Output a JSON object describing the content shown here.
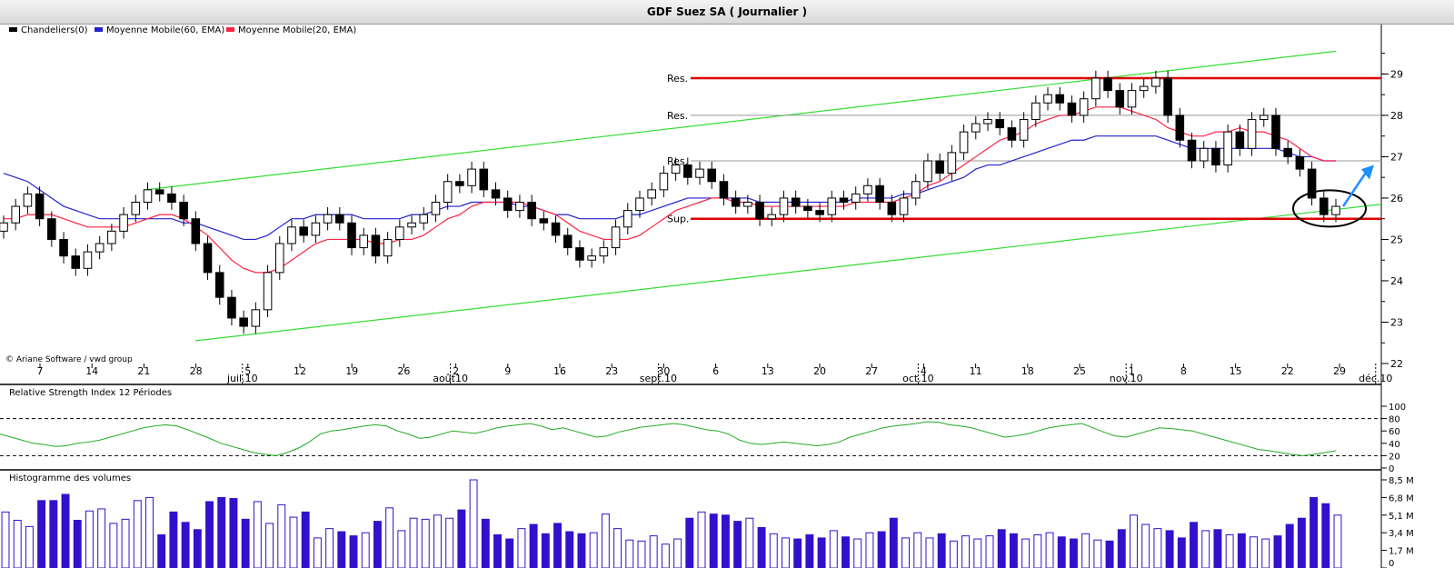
{
  "window": {
    "title": "GDF Suez SA  ( Journalier )"
  },
  "colors": {
    "ma60": "#2222cc",
    "ma20": "#ff2244",
    "trend": "#33dd33",
    "resistance_strong": "#dd0000",
    "resistance_weak": "#999999",
    "rsi": "#22aa22",
    "volume": "#3311cc",
    "arrow": "#1e8fff"
  },
  "legend": {
    "candles": "Chandeliers(0)",
    "ma60": "Moyenne Mobile(60, EMA)",
    "ma20": "Moyenne Mobile(20, EMA)"
  },
  "copyright": "© Ariane Software / vwd group",
  "rsi_panel": {
    "title": "Relative Strength Index 12 Périodes"
  },
  "volume_panel": {
    "title": "Histogramme des volumes"
  },
  "chart_data": [
    {
      "type": "candlestick",
      "title": "GDF Suez SA  ( Journalier )",
      "ylim": [
        22,
        29.8
      ],
      "y_ticks": [
        22,
        23,
        24,
        25,
        26,
        27,
        28,
        29
      ],
      "day_ticks": [
        "7",
        "14",
        "21",
        "28",
        "5",
        "12",
        "19",
        "26",
        "2",
        "9",
        "16",
        "23",
        "30",
        "6",
        "13",
        "20",
        "27",
        "4",
        "11",
        "18",
        "25",
        "1",
        "8",
        "15",
        "22",
        "29"
      ],
      "month_labels": [
        {
          "label": "juil.10",
          "at_day": 4
        },
        {
          "label": "août10",
          "at_day": 8
        },
        {
          "label": "sept.10",
          "at_day": 12
        },
        {
          "label": "oct.10",
          "at_day": 17
        },
        {
          "label": "nov.10",
          "at_day": 21
        },
        {
          "label": "déc.10",
          "at_day": 25.8
        }
      ],
      "closes": [
        25.4,
        25.8,
        26.1,
        25.5,
        25.0,
        24.6,
        24.3,
        24.7,
        24.9,
        25.2,
        25.6,
        25.9,
        26.2,
        26.1,
        25.9,
        25.5,
        24.9,
        24.2,
        23.6,
        23.1,
        22.9,
        23.3,
        24.2,
        24.9,
        25.3,
        25.1,
        25.4,
        25.6,
        25.4,
        24.8,
        25.1,
        24.6,
        25.0,
        25.3,
        25.4,
        25.6,
        25.9,
        26.4,
        26.3,
        26.7,
        26.2,
        26.0,
        25.7,
        25.9,
        25.5,
        25.4,
        25.1,
        24.8,
        24.5,
        24.6,
        24.8,
        25.3,
        25.7,
        26.0,
        26.2,
        26.6,
        26.8,
        26.5,
        26.7,
        26.4,
        26.0,
        25.8,
        25.9,
        25.5,
        25.6,
        26.0,
        25.8,
        25.7,
        25.6,
        26.0,
        25.9,
        26.1,
        26.3,
        25.9,
        25.6,
        26.0,
        26.4,
        26.9,
        26.6,
        27.1,
        27.6,
        27.8,
        27.9,
        27.7,
        27.4,
        27.9,
        28.3,
        28.5,
        28.3,
        28.0,
        28.4,
        28.9,
        28.6,
        28.2,
        28.6,
        28.7,
        28.9,
        28.0,
        27.4,
        26.9,
        27.2,
        26.8,
        27.6,
        27.2,
        27.9,
        28.0,
        27.2,
        27.0,
        26.7,
        26.0,
        25.6,
        25.8
      ],
      "resistance_lines": [
        {
          "label": "Res.",
          "value": 28.9,
          "strong": true
        },
        {
          "label": "Res.",
          "value": 28.0,
          "strong": false
        },
        {
          "label": "Res.",
          "value": 26.9,
          "strong": false
        },
        {
          "label": "Sup.",
          "value": 25.5,
          "strong": true
        }
      ],
      "series": [
        {
          "name": "Moyenne Mobile(60, EMA)",
          "values": [
            26.6,
            26.5,
            26.4,
            26.2,
            26.0,
            25.8,
            25.7,
            25.6,
            25.5,
            25.5,
            25.5,
            25.5,
            25.5,
            25.5,
            25.5,
            25.4,
            25.4,
            25.3,
            25.2,
            25.1,
            25.0,
            25.0,
            25.1,
            25.3,
            25.5,
            25.5,
            25.6,
            25.6,
            25.6,
            25.6,
            25.5,
            25.5,
            25.5,
            25.5,
            25.6,
            25.6,
            25.7,
            25.8,
            25.8,
            25.9,
            25.9,
            25.9,
            25.9,
            25.8,
            25.8,
            25.7,
            25.6,
            25.6,
            25.5,
            25.5,
            25.5,
            25.5,
            25.6,
            25.6,
            25.7,
            25.8,
            25.9,
            26.0,
            26.0,
            26.0,
            26.0,
            26.0,
            26.0,
            25.9,
            25.9,
            25.9,
            25.9,
            25.9,
            25.9,
            25.9,
            25.9,
            26.0,
            26.0,
            26.0,
            26.0,
            26.1,
            26.1,
            26.2,
            26.3,
            26.4,
            26.5,
            26.7,
            26.8,
            26.8,
            26.9,
            27.0,
            27.1,
            27.2,
            27.3,
            27.4,
            27.4,
            27.5,
            27.5,
            27.5,
            27.5,
            27.5,
            27.5,
            27.4,
            27.3,
            27.2,
            27.2,
            27.2,
            27.2,
            27.2,
            27.2,
            27.2,
            27.2,
            27.1,
            27.0,
            27.0,
            26.9,
            26.9
          ]
        },
        {
          "name": "Moyenne Mobile(20, EMA)",
          "values": [
            25.5,
            25.5,
            25.6,
            25.6,
            25.6,
            25.5,
            25.4,
            25.3,
            25.3,
            25.3,
            25.3,
            25.4,
            25.5,
            25.6,
            25.6,
            25.5,
            25.3,
            25.1,
            24.8,
            24.5,
            24.3,
            24.2,
            24.2,
            24.3,
            24.5,
            24.7,
            24.9,
            25.0,
            25.0,
            25.0,
            25.0,
            24.9,
            24.9,
            25.0,
            25.0,
            25.1,
            25.3,
            25.5,
            25.6,
            25.8,
            25.9,
            25.9,
            25.9,
            25.9,
            25.8,
            25.7,
            25.6,
            25.4,
            25.2,
            25.1,
            25.0,
            25.0,
            25.0,
            25.1,
            25.3,
            25.5,
            25.7,
            25.8,
            25.9,
            26.0,
            26.0,
            25.9,
            25.9,
            25.8,
            25.8,
            25.8,
            25.8,
            25.8,
            25.8,
            25.8,
            25.8,
            25.9,
            25.9,
            25.9,
            25.9,
            26.0,
            26.1,
            26.3,
            26.4,
            26.6,
            26.8,
            27.0,
            27.2,
            27.4,
            27.5,
            27.6,
            27.8,
            27.9,
            28.0,
            28.0,
            28.1,
            28.2,
            28.2,
            28.2,
            28.1,
            28.0,
            27.9,
            27.7,
            27.6,
            27.5,
            27.5,
            27.6,
            27.6,
            27.7,
            27.6,
            27.6,
            27.5,
            27.4,
            27.2,
            27.0,
            26.9,
            26.9
          ]
        }
      ]
    },
    {
      "type": "line",
      "title": "Relative Strength Index 12 Périodes",
      "ylim": [
        0,
        100
      ],
      "y_ticks": [
        0,
        20,
        40,
        60,
        80,
        100
      ],
      "reference_lines": [
        80,
        20
      ],
      "values": [
        55,
        50,
        45,
        40,
        38,
        35,
        36,
        40,
        42,
        45,
        50,
        55,
        60,
        65,
        68,
        70,
        68,
        62,
        55,
        48,
        40,
        35,
        30,
        25,
        22,
        20,
        25,
        32,
        42,
        55,
        60,
        62,
        65,
        68,
        70,
        68,
        60,
        55,
        48,
        50,
        55,
        60,
        58,
        56,
        60,
        65,
        68,
        70,
        72,
        68,
        62,
        65,
        60,
        55,
        50,
        52,
        58,
        62,
        66,
        68,
        70,
        72,
        70,
        66,
        62,
        60,
        55,
        45,
        40,
        38,
        40,
        42,
        40,
        38,
        36,
        38,
        42,
        50,
        55,
        60,
        65,
        68,
        70,
        72,
        75,
        74,
        70,
        68,
        65,
        60,
        55,
        50,
        52,
        55,
        60,
        65,
        68,
        70,
        72,
        65,
        58,
        52,
        50,
        55,
        60,
        65,
        64,
        62,
        60,
        55,
        50,
        45,
        40,
        35,
        30,
        28,
        25,
        22,
        20,
        22,
        25,
        28
      ]
    },
    {
      "type": "bar",
      "title": "Histogramme des volumes",
      "ylim": [
        0,
        8.5
      ],
      "y_ticks": [
        "0",
        "1,7 M",
        "3,4 M",
        "5,1 M",
        "6,8 M",
        "8,5 M"
      ],
      "values": [
        5.4,
        4.6,
        4.0,
        6.5,
        6.5,
        7.1,
        4.6,
        5.5,
        5.7,
        4.3,
        4.7,
        6.5,
        6.8,
        3.2,
        5.4,
        4.4,
        3.7,
        6.4,
        6.8,
        6.7,
        4.7,
        6.4,
        4.3,
        6.1,
        4.9,
        5.4,
        2.9,
        3.8,
        3.5,
        3.1,
        3.4,
        4.5,
        5.8,
        3.6,
        4.8,
        4.7,
        5.1,
        4.8,
        5.6,
        8.5,
        4.7,
        3.2,
        2.8,
        3.8,
        4.2,
        3.3,
        4.3,
        3.5,
        3.3,
        3.4,
        5.2,
        3.8,
        2.7,
        2.6,
        3.1,
        2.3,
        2.8,
        4.8,
        5.4,
        5.2,
        5.1,
        4.5,
        4.8,
        3.9,
        3.3,
        2.9,
        2.8,
        3.2,
        2.9,
        3.6,
        3.0,
        2.8,
        3.4,
        3.5,
        4.8,
        2.9,
        3.4,
        2.9,
        3.3,
        2.6,
        3.1,
        2.8,
        3.1,
        3.7,
        3.3,
        2.8,
        3.2,
        3.4,
        3.0,
        2.8,
        3.3,
        2.7,
        2.6,
        3.7,
        5.1,
        4.2,
        3.8,
        3.6,
        2.9,
        4.4,
        3.6,
        3.7,
        3.2,
        3.3,
        3.0,
        2.8,
        3.1,
        4.2,
        4.8,
        6.8,
        6.2,
        5.1
      ]
    }
  ]
}
